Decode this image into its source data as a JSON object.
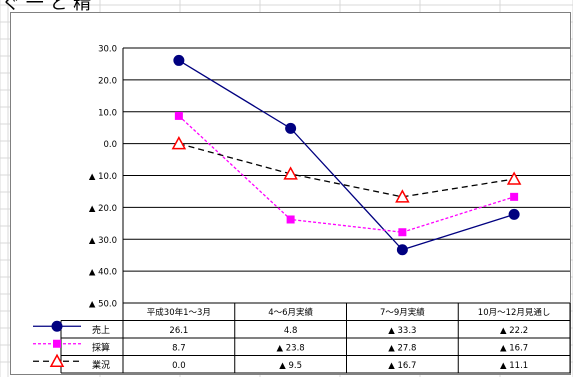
{
  "page": {
    "title_fragment": "ぐ 一 と 精"
  },
  "chart_data": {
    "type": "line",
    "title": "",
    "xlabel": "",
    "ylabel": "",
    "ylim": [
      -50,
      30
    ],
    "yticks": [
      30,
      20,
      10,
      0,
      -10,
      -20,
      -30,
      -40,
      -50
    ],
    "ytick_labels": [
      "30.0",
      "20.0",
      "10.0",
      "0.0",
      "▲ 10.0",
      "▲ 20.0",
      "▲ 30.0",
      "▲ 40.0",
      "▲ 50.0"
    ],
    "grid": true,
    "legend": "data-table",
    "categories": [
      "平成30年1～3月",
      "4～6月実績",
      "7～9月実績",
      "10月～12月見通し"
    ],
    "series": [
      {
        "name": "売上",
        "values": [
          26.1,
          4.8,
          -33.3,
          -22.2
        ],
        "value_labels": [
          "26.1",
          "4.8",
          "▲ 33.3",
          "▲ 22.2"
        ],
        "color": "#000080",
        "line_style": "solid",
        "marker": "circle"
      },
      {
        "name": "採算",
        "values": [
          8.7,
          -23.8,
          -27.8,
          -16.7
        ],
        "value_labels": [
          "8.7",
          "▲ 23.8",
          "▲ 27.8",
          "▲ 16.7"
        ],
        "color": "#ff00ff",
        "line_style": "dotted",
        "marker": "square"
      },
      {
        "name": "業況",
        "values": [
          0.0,
          -9.5,
          -16.7,
          -11.1
        ],
        "value_labels": [
          "0.0",
          "▲ 9.5",
          "▲ 16.7",
          "▲ 11.1"
        ],
        "color": "#000000",
        "line_style": "dashed",
        "marker": "triangle",
        "marker_color": "#ff0000"
      }
    ]
  }
}
